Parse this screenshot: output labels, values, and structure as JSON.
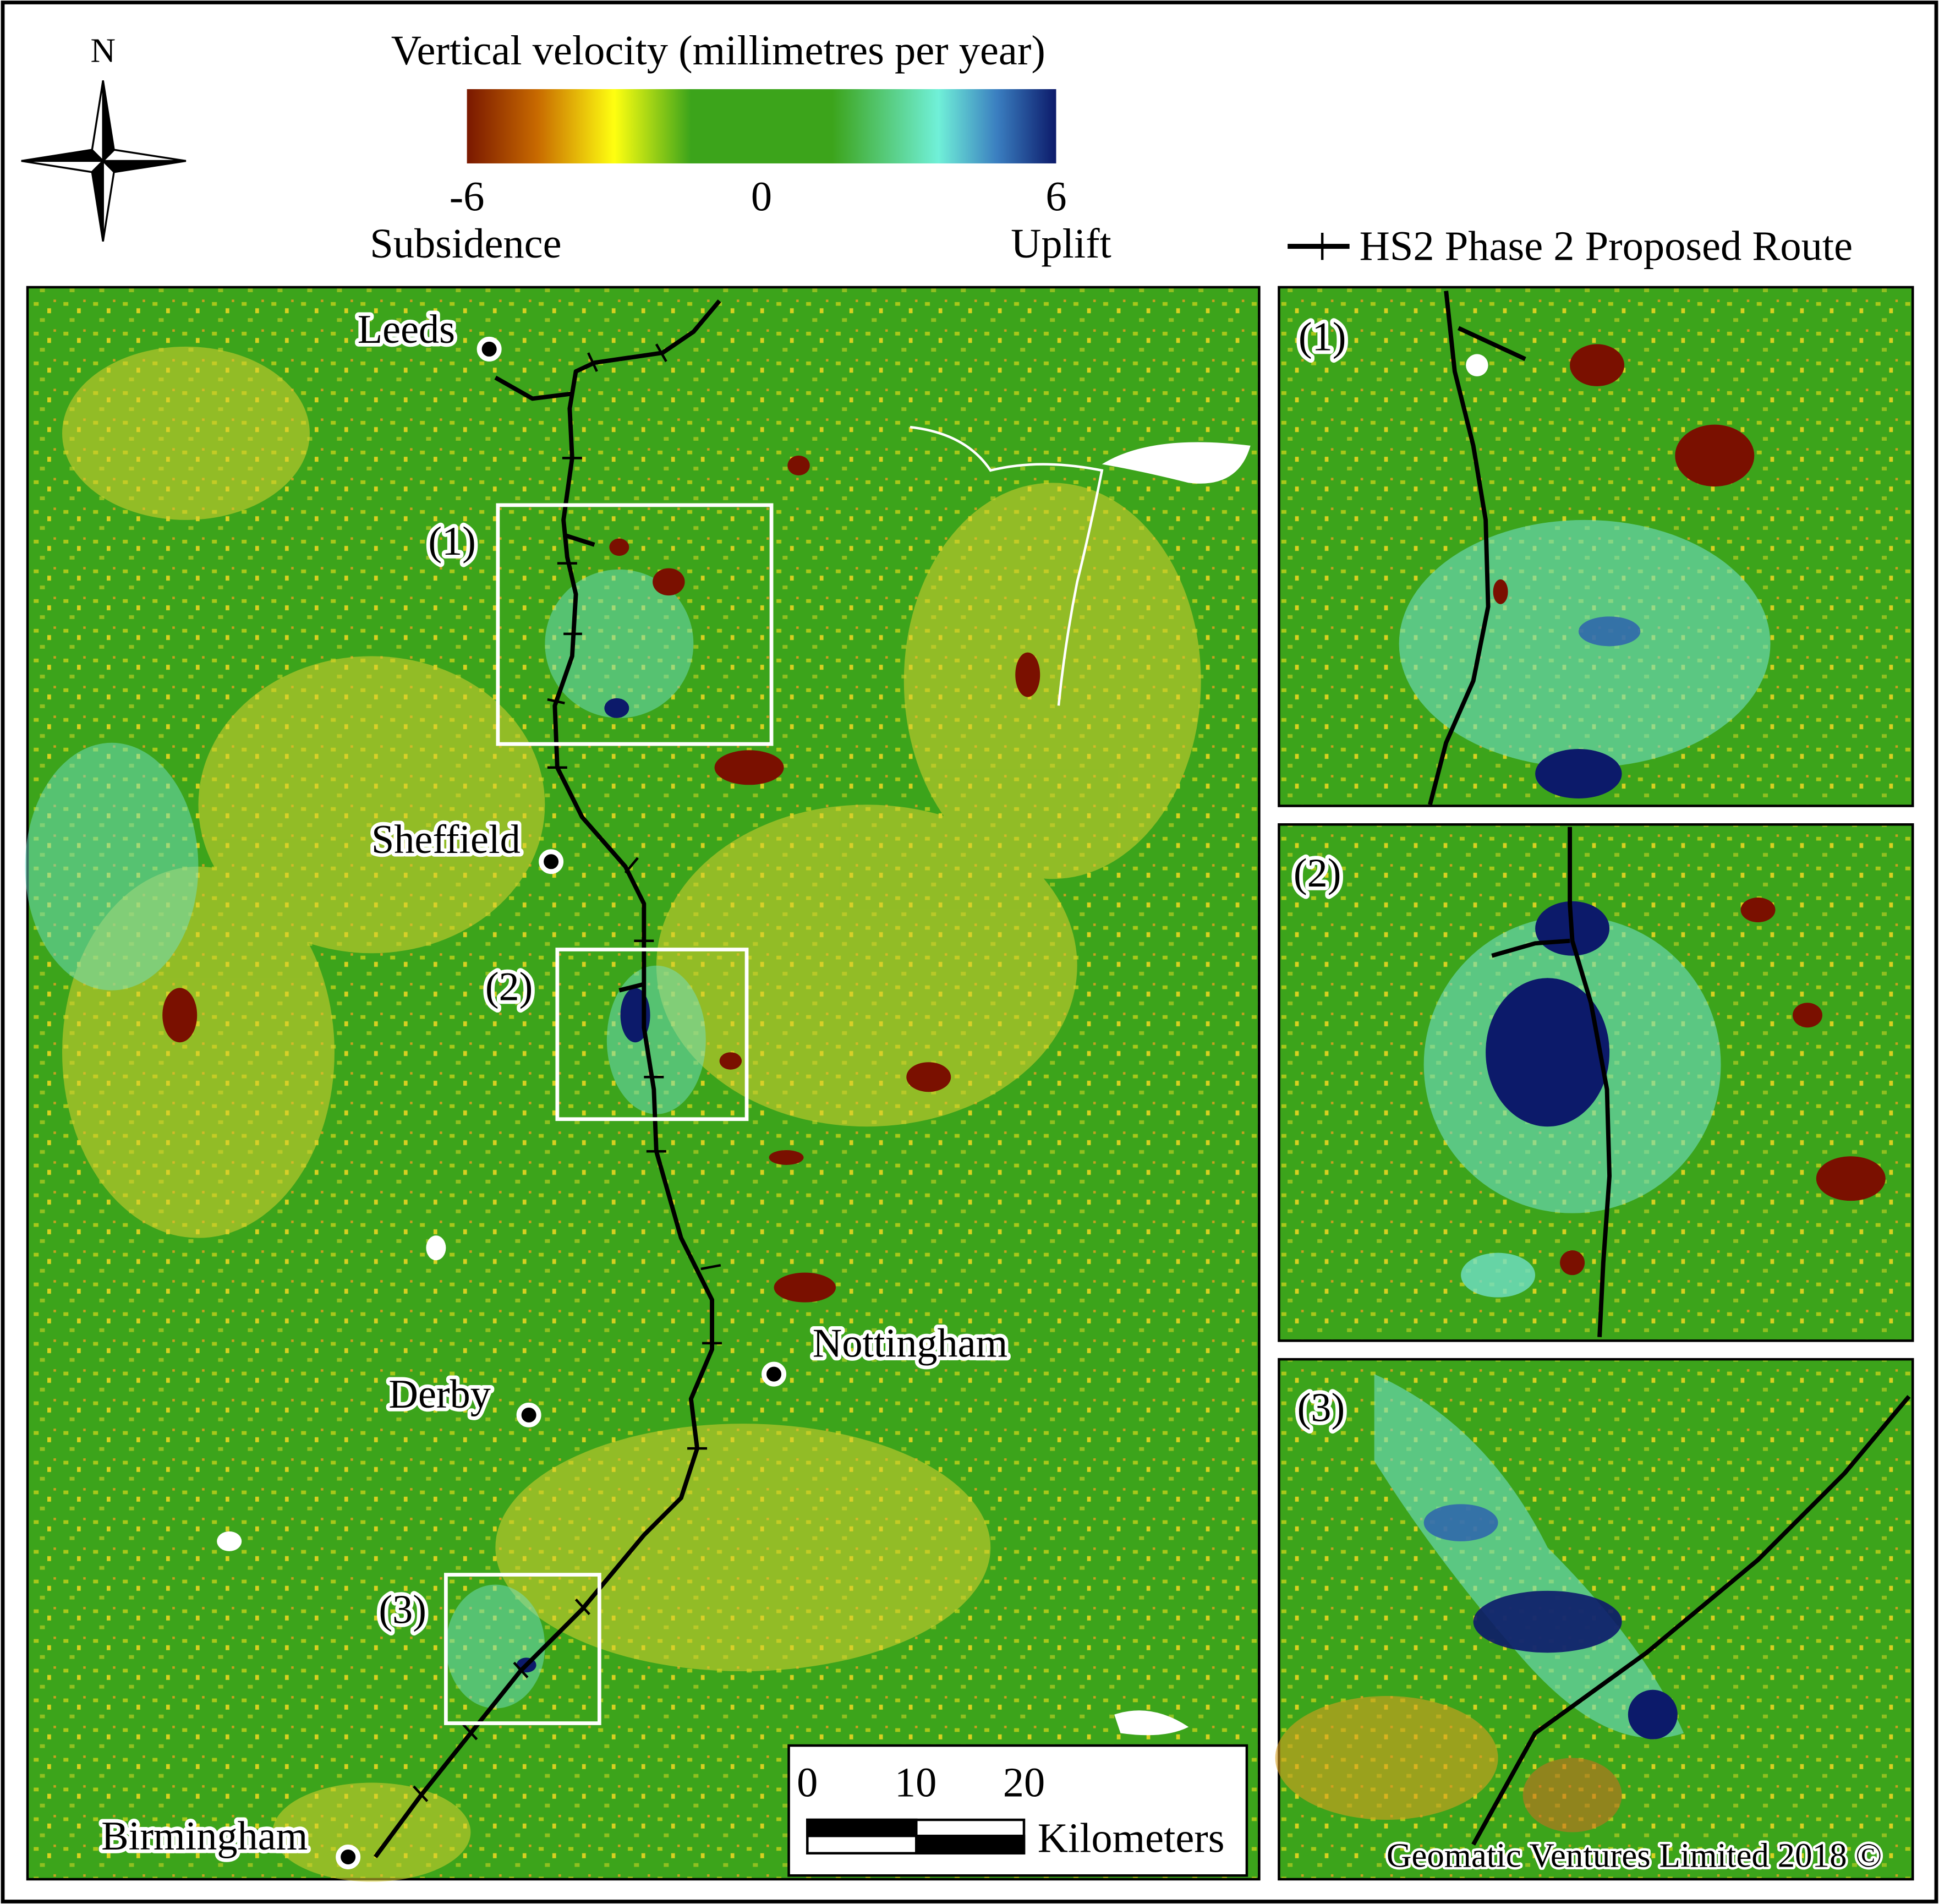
{
  "north": "N",
  "legend": {
    "title": "Vertical velocity (millimetres per year)",
    "min": -6,
    "max": 6,
    "ticks": [
      -6,
      0,
      6
    ],
    "low_label": "Subsidence",
    "high_label": "Uplift",
    "route_label": "HS2 Phase 2 Proposed Route"
  },
  "cities": [
    "Leeds",
    "Sheffield",
    "Nottingham",
    "Derby",
    "Birmingham"
  ],
  "boxes": [
    "(1)",
    "(2)",
    "(3)"
  ],
  "scale_bar": {
    "ticks": [
      0,
      10,
      20
    ],
    "unit": "Kilometers"
  },
  "credit": "Geomatic Ventures Limited 2018 ©"
}
